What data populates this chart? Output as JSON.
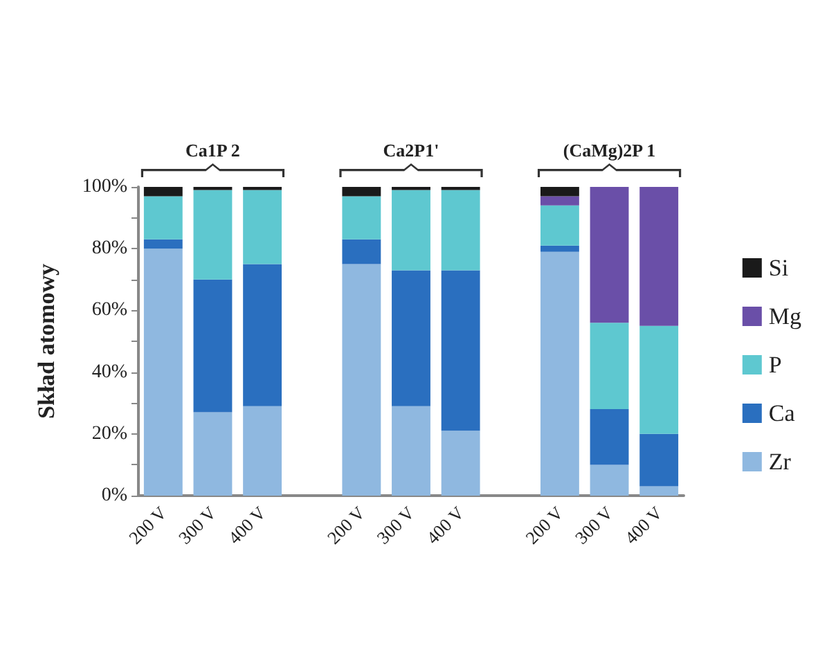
{
  "chart_data": {
    "type": "bar",
    "stacked": true,
    "ylabel": "Skład atomowy",
    "categories": [
      "200 V",
      "300 V",
      "400 V",
      null,
      "200 V",
      "300 V",
      "400 V",
      null,
      "200 V",
      "300 V",
      "400 V"
    ],
    "series": [
      {
        "name": "Zr",
        "color": "#8fb8e0",
        "values": [
          80,
          27,
          29,
          null,
          75,
          29,
          21,
          null,
          79,
          10,
          3
        ]
      },
      {
        "name": "Ca",
        "color": "#2a6fbf",
        "values": [
          3,
          43,
          46,
          null,
          8,
          44,
          52,
          null,
          2,
          18,
          17
        ]
      },
      {
        "name": "P",
        "color": "#5ec8d0",
        "values": [
          14,
          29,
          24,
          null,
          14,
          26,
          26,
          null,
          13,
          28,
          35
        ]
      },
      {
        "name": "Mg",
        "color": "#6a4fa8",
        "values": [
          0,
          0,
          0,
          null,
          0,
          0,
          0,
          null,
          3,
          44,
          45
        ]
      },
      {
        "name": "Si",
        "color": "#1a1a1a",
        "values": [
          3,
          1,
          1,
          null,
          3,
          1,
          1,
          null,
          3,
          0,
          0
        ]
      }
    ],
    "annotations": [
      "Ca1P 2",
      "Ca2P1'",
      "(CaMg)2P 1"
    ],
    "ylim": [
      0,
      100
    ],
    "yticks": [
      {
        "value": 0,
        "label": "0%"
      },
      {
        "value": 10,
        "label": null
      },
      {
        "value": 20,
        "label": "20%"
      },
      {
        "value": 30,
        "label": null
      },
      {
        "value": 40,
        "label": "40%"
      },
      {
        "value": 50,
        "label": null
      },
      {
        "value": 60,
        "label": "60%"
      },
      {
        "value": 70,
        "label": null
      },
      {
        "value": 80,
        "label": "80%"
      },
      {
        "value": 90,
        "label": null
      },
      {
        "value": 100,
        "label": "100%"
      }
    ],
    "legend": "right"
  }
}
